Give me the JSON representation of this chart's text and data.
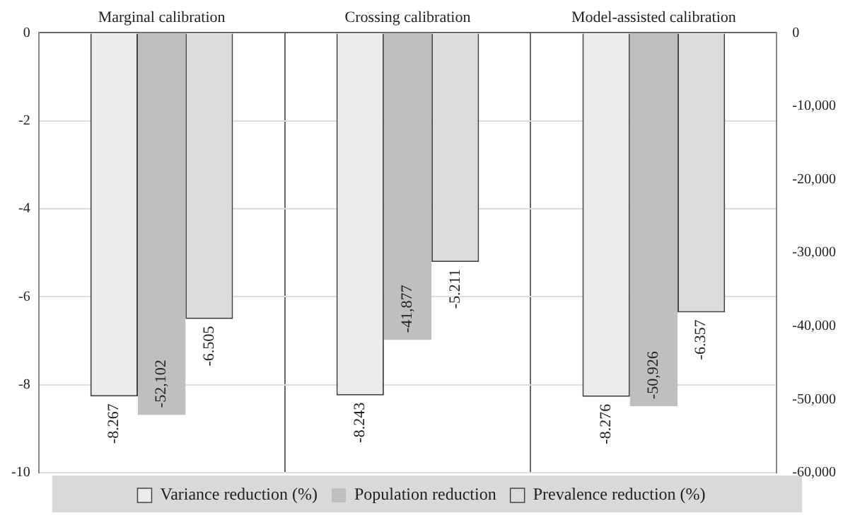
{
  "chart_data": {
    "type": "bar",
    "categories": [
      "Marginal calibration",
      "Crossing calibration",
      "Model-assisted calibration"
    ],
    "series": [
      {
        "name": "Variance reduction (%)",
        "color": "#ececec",
        "values": [
          -8.267,
          -8.243,
          -8.276
        ],
        "value_labels": [
          "-8.267",
          "-8.243",
          "-8.276"
        ]
      },
      {
        "name": "Population reduction",
        "color": "#bfbfbf",
        "axis": "y2",
        "values": [
          -52102,
          -41877,
          -50926
        ],
        "value_labels": [
          "-52,102",
          "-41,877",
          "-50,926"
        ]
      },
      {
        "name": "Prevalence reduction (%)",
        "color": "#dcdcdc",
        "values": [
          -6.505,
          -5.211,
          -6.357
        ],
        "value_labels": [
          "-6.505",
          "-5.211",
          "-6.357"
        ]
      }
    ],
    "ylim": [
      -10,
      0
    ],
    "yticks": [
      -10,
      -8,
      -6,
      -4,
      -2,
      0
    ],
    "y2lim": [
      -60000,
      0
    ],
    "y2ticks": [
      {
        "value": -60000,
        "label": "-60,000"
      },
      {
        "value": -50000,
        "label": "-50,000"
      },
      {
        "value": -40000,
        "label": "-40,000"
      },
      {
        "value": -30000,
        "label": "-30,000"
      },
      {
        "value": -20000,
        "label": "-20,000"
      },
      {
        "value": -10000,
        "label": "-10,000"
      },
      0
    ],
    "grid": true,
    "legend": "bottom"
  }
}
